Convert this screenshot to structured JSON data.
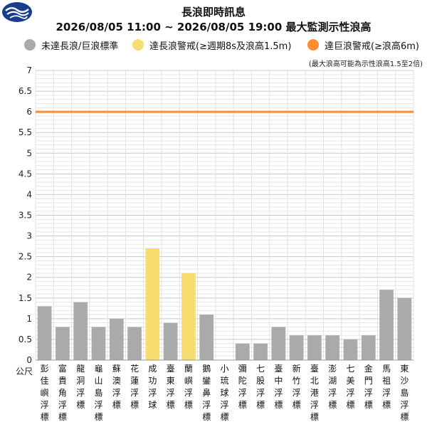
{
  "header": {
    "title": "長浪即時訊息",
    "subtitle": "2026/08/05 11:00 ~ 2026/08/05 19:00 最大監測示性浪高"
  },
  "legend": [
    {
      "label": "未達長浪/巨浪標準",
      "color": "#aaaaaa"
    },
    {
      "label": "達長浪警戒(≥週期8s及浪高1.5m)",
      "color": "#f7dc6f"
    },
    {
      "label": "達巨浪警戒(≥浪高6m)",
      "color": "#ff8c32"
    }
  ],
  "note": "(最大浪高可能為示性浪高1.5至2倍)",
  "chart_data": {
    "type": "bar",
    "ylabel": "公尺",
    "ylim": [
      0,
      7
    ],
    "yticks": [
      "0",
      "0.5",
      "1",
      "1.5",
      "2",
      "2.5",
      "3",
      "3.5",
      "4",
      "4.5",
      "5",
      "5.5",
      "6",
      "6.5",
      "7"
    ],
    "grid": true,
    "threshold": {
      "value": 6,
      "color": "#ff8c32"
    },
    "colors": {
      "normal": "#aaaaaa",
      "long_wave": "#f7dc6f"
    },
    "categories": [
      "彭佳嶼浮標",
      "富貴角浮標",
      "龍洞浮標",
      "龜山島浮標",
      "蘇澳浮標",
      "花蓮浮標",
      "成功浮球",
      "臺東浮標",
      "蘭嶼浮標",
      "鵝鑾鼻浮標",
      "小琉球浮標",
      "彌陀浮標",
      "七股浮標",
      "臺中浮標",
      "新竹浮標",
      "臺北港浮標",
      "澎湖浮標",
      "七美浮標",
      "金門浮標",
      "馬祖浮標",
      "東沙島浮標"
    ],
    "values": [
      1.3,
      0.8,
      1.4,
      0.8,
      1.0,
      0.8,
      2.7,
      0.9,
      2.1,
      1.1,
      null,
      0.4,
      0.4,
      0.8,
      0.6,
      0.6,
      0.6,
      0.5,
      0.6,
      1.7,
      1.5
    ],
    "status": [
      "normal",
      "normal",
      "normal",
      "normal",
      "normal",
      "normal",
      "long_wave",
      "normal",
      "long_wave",
      "normal",
      "normal",
      "normal",
      "normal",
      "normal",
      "normal",
      "normal",
      "normal",
      "normal",
      "normal",
      "normal",
      "normal"
    ]
  }
}
